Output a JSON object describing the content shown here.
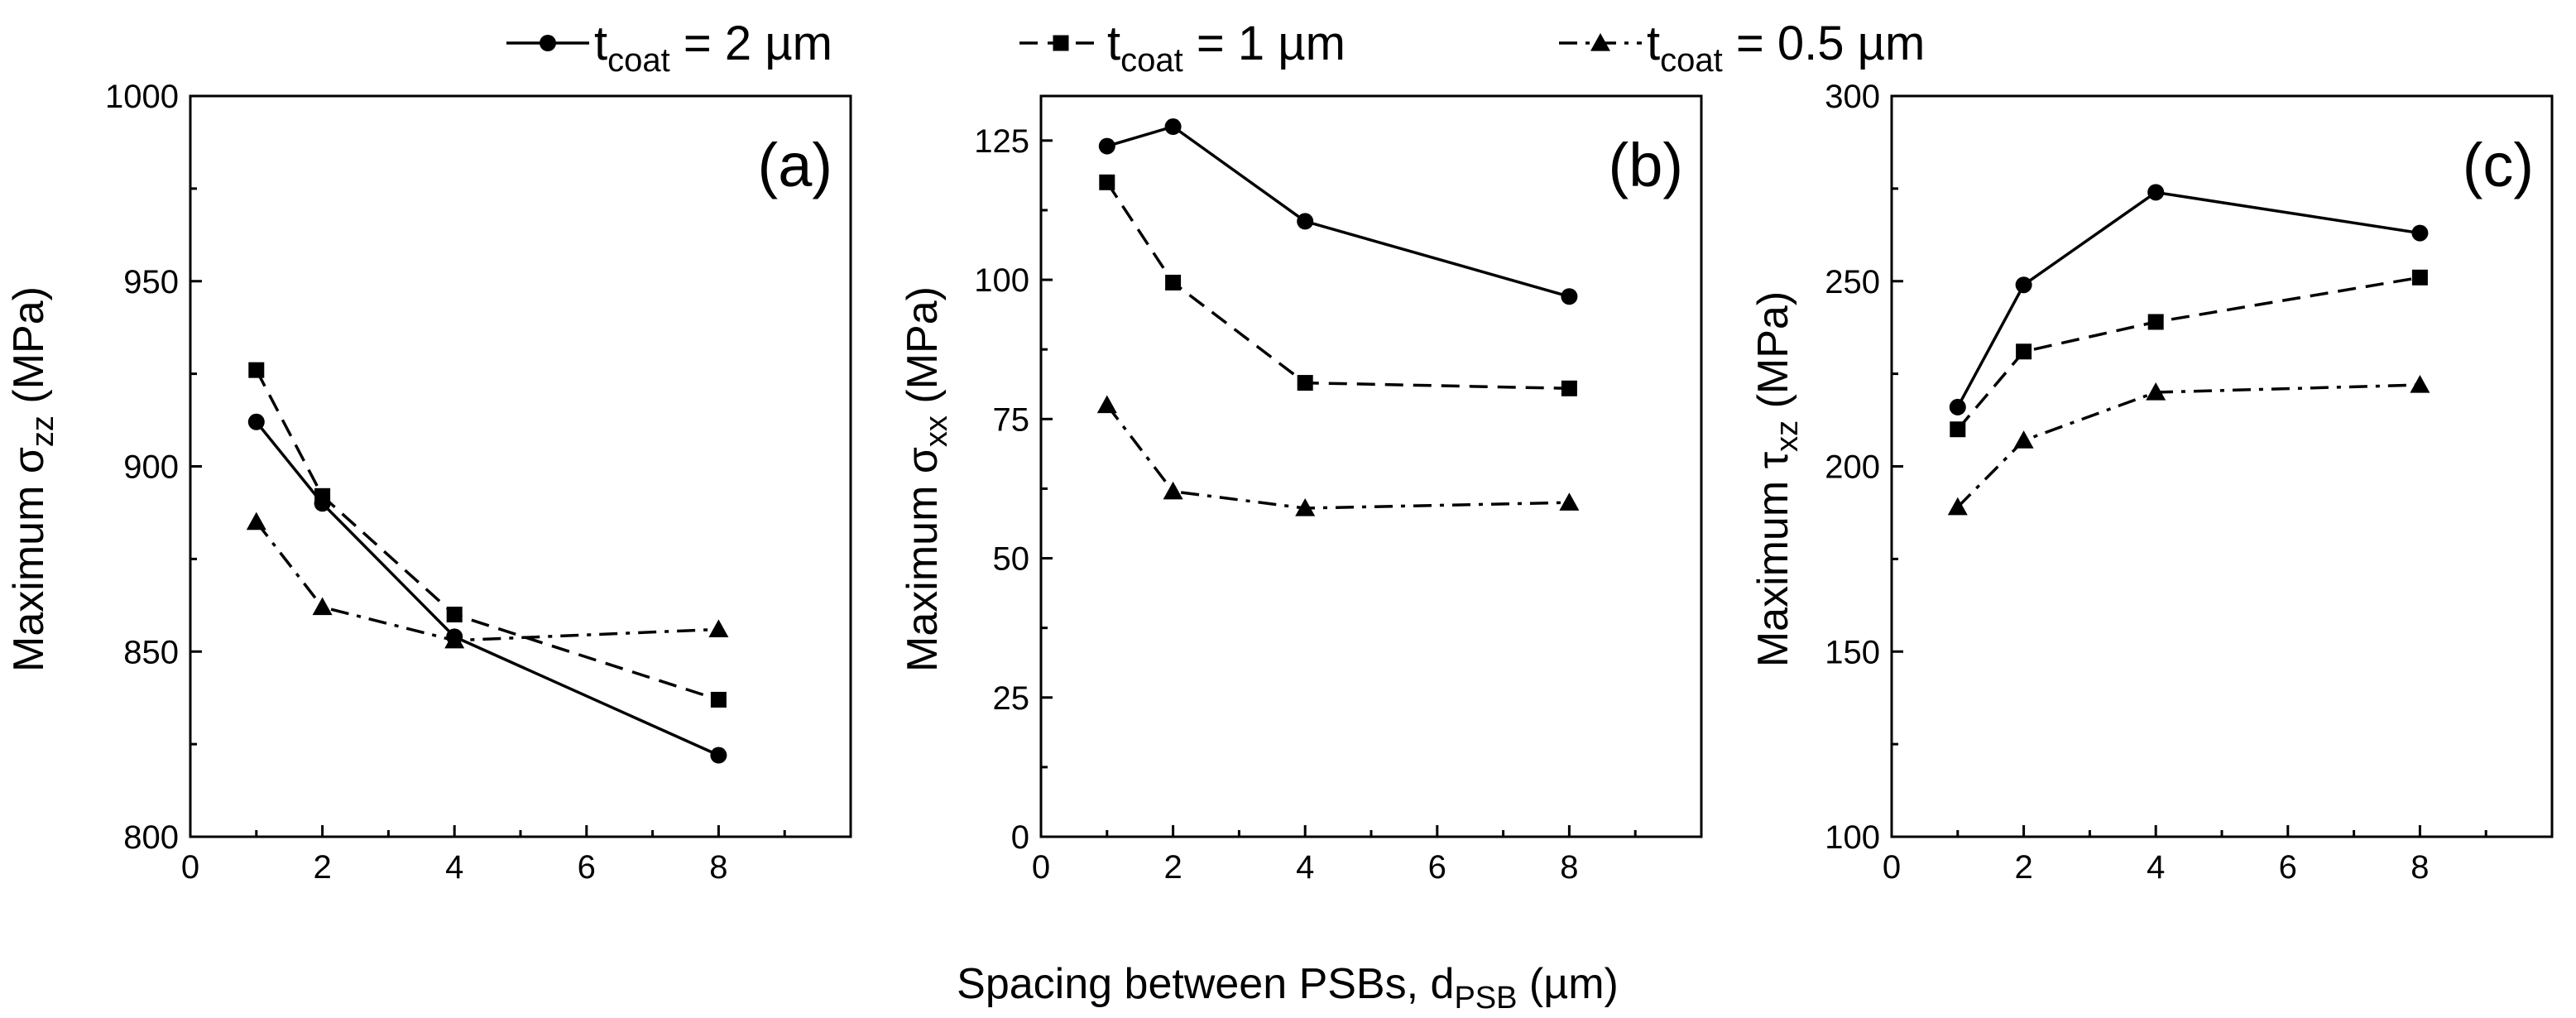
{
  "chart_data": [
    {
      "type": "line",
      "panel_label": "(a)",
      "x": [
        1,
        2,
        4,
        8
      ],
      "xlim": [
        0,
        10
      ],
      "xticks": [
        0,
        2,
        4,
        6,
        8
      ],
      "ylim": [
        800,
        1000
      ],
      "yticks": [
        800,
        850,
        900,
        950,
        1000
      ],
      "ylabel": {
        "main": "Maximum σ",
        "sub": "zz",
        "unit": " (MPa)"
      },
      "series": [
        {
          "name": "t_coat = 2 µm",
          "values": [
            912,
            890,
            854,
            822
          ]
        },
        {
          "name": "t_coat = 1 µm",
          "values": [
            926,
            892,
            860,
            837
          ]
        },
        {
          "name": "t_coat = 0.5 µm",
          "values": [
            885,
            862,
            853,
            856
          ]
        }
      ]
    },
    {
      "type": "line",
      "panel_label": "(b)",
      "x": [
        1,
        2,
        4,
        8
      ],
      "xlim": [
        0,
        10
      ],
      "xticks": [
        0,
        2,
        4,
        6,
        8
      ],
      "ylim": [
        0,
        133
      ],
      "yticks": [
        0,
        25,
        50,
        75,
        100,
        125
      ],
      "ylabel": {
        "main": "Maximum σ",
        "sub": "xx",
        "unit": " (MPa)"
      },
      "series": [
        {
          "name": "t_coat = 2 µm",
          "values": [
            124,
            127.5,
            110.5,
            97
          ]
        },
        {
          "name": "t_coat = 1 µm",
          "values": [
            117.5,
            99.5,
            81.5,
            80.5
          ]
        },
        {
          "name": "t_coat = 0.5 µm",
          "values": [
            77.5,
            62,
            59,
            60
          ]
        }
      ]
    },
    {
      "type": "line",
      "panel_label": "(c)",
      "x": [
        1,
        2,
        4,
        8
      ],
      "xlim": [
        0,
        10
      ],
      "xticks": [
        0,
        2,
        4,
        6,
        8
      ],
      "ylim": [
        100,
        300
      ],
      "yticks": [
        100,
        150,
        200,
        250,
        300
      ],
      "ylabel": {
        "main": "Maximum τ",
        "sub": "xz",
        "unit": " (MPa)"
      },
      "series": [
        {
          "name": "t_coat = 2 µm",
          "values": [
            216,
            249,
            274,
            263
          ]
        },
        {
          "name": "t_coat = 1 µm",
          "values": [
            210,
            231,
            239,
            251
          ]
        },
        {
          "name": "t_coat = 0.5 µm",
          "values": [
            189,
            207,
            220,
            222
          ]
        }
      ]
    }
  ],
  "xlabel": {
    "main": "Spacing between PSBs, d",
    "sub": "PSB",
    "unit": " (µm)"
  },
  "legend": [
    {
      "main": "t",
      "sub": "coat",
      "rest": " = 2 µm",
      "marker": "circle",
      "dash": "solid"
    },
    {
      "main": "t",
      "sub": "coat",
      "rest": " = 1 µm",
      "marker": "square",
      "dash": "dashed"
    },
    {
      "main": "t",
      "sub": "coat",
      "rest": " = 0.5 µm",
      "marker": "triangle",
      "dash": "dashdot"
    }
  ],
  "colors": {
    "line": "#000000",
    "background": "#ffffff"
  }
}
